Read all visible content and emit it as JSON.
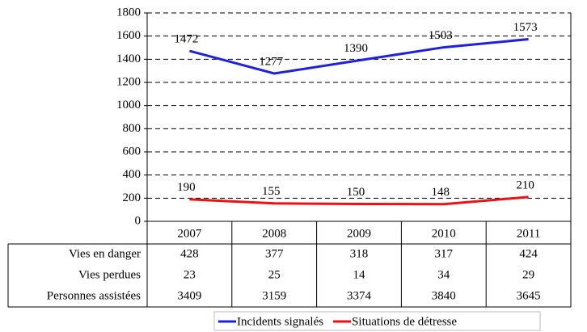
{
  "chart_data": {
    "type": "line",
    "categories": [
      "2007",
      "2008",
      "2009",
      "2010",
      "2011"
    ],
    "series": [
      {
        "name": "Incidents signalés",
        "color": "#1f1fe0",
        "values": [
          1472,
          1277,
          1390,
          1503,
          1573
        ]
      },
      {
        "name": "Situations de détresse",
        "color": "#ee1111",
        "values": [
          190,
          155,
          150,
          148,
          210
        ]
      }
    ],
    "ylim": [
      0,
      1800
    ],
    "yticks": [
      0,
      200,
      400,
      600,
      800,
      1000,
      1200,
      1400,
      1600,
      1800
    ],
    "grid": true,
    "table": {
      "rows": [
        {
          "label": "Vies en danger",
          "values": [
            428,
            377,
            318,
            317,
            424
          ]
        },
        {
          "label": "Vies perdues",
          "values": [
            23,
            25,
            14,
            34,
            29
          ]
        },
        {
          "label": "Personnes assistées",
          "values": [
            3409,
            3159,
            3374,
            3840,
            3645
          ]
        }
      ]
    }
  }
}
